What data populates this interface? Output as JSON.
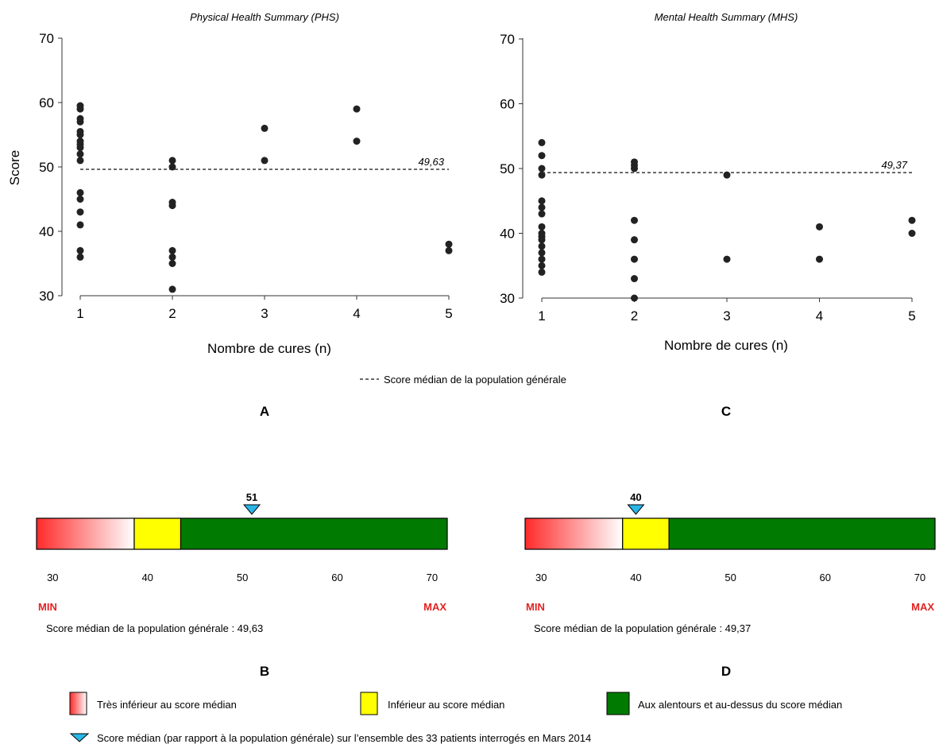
{
  "chart_data": [
    {
      "type": "scatter",
      "panel": "A",
      "title": "Physical Health Summary (PHS)",
      "xlabel": "Nombre de cures (n)",
      "ylabel": "Score",
      "xticks": [
        "1",
        "2",
        "3",
        "4",
        "5"
      ],
      "yticks": [
        "30",
        "40",
        "50",
        "60",
        "70"
      ],
      "xlim": [
        1,
        5
      ],
      "ylim": [
        30,
        70
      ],
      "grid": false,
      "reference_line": {
        "value": 49.63,
        "label": "49,63",
        "style": "dashed"
      },
      "points": [
        {
          "x": 1,
          "y": 59.5
        },
        {
          "x": 1,
          "y": 59
        },
        {
          "x": 1,
          "y": 57.5
        },
        {
          "x": 1,
          "y": 57
        },
        {
          "x": 1,
          "y": 55.5
        },
        {
          "x": 1,
          "y": 55
        },
        {
          "x": 1,
          "y": 54
        },
        {
          "x": 1,
          "y": 53.5
        },
        {
          "x": 1,
          "y": 53
        },
        {
          "x": 1,
          "y": 52
        },
        {
          "x": 1,
          "y": 51
        },
        {
          "x": 1,
          "y": 46
        },
        {
          "x": 1,
          "y": 45
        },
        {
          "x": 1,
          "y": 43
        },
        {
          "x": 1,
          "y": 41
        },
        {
          "x": 1,
          "y": 37
        },
        {
          "x": 1,
          "y": 36
        },
        {
          "x": 2,
          "y": 51
        },
        {
          "x": 2,
          "y": 50
        },
        {
          "x": 2,
          "y": 44.5
        },
        {
          "x": 2,
          "y": 44
        },
        {
          "x": 2,
          "y": 37
        },
        {
          "x": 2,
          "y": 36
        },
        {
          "x": 2,
          "y": 35
        },
        {
          "x": 2,
          "y": 31
        },
        {
          "x": 3,
          "y": 56
        },
        {
          "x": 3,
          "y": 51
        },
        {
          "x": 4,
          "y": 59
        },
        {
          "x": 4,
          "y": 54
        },
        {
          "x": 5,
          "y": 38
        },
        {
          "x": 5,
          "y": 37
        }
      ]
    },
    {
      "type": "scatter",
      "panel": "C",
      "title": "Mental Health Summary (MHS)",
      "xlabel": "Nombre de cures (n)",
      "ylabel": "",
      "xticks": [
        "1",
        "2",
        "3",
        "4",
        "5"
      ],
      "yticks": [
        "30",
        "40",
        "50",
        "60",
        "70"
      ],
      "xlim": [
        1,
        5
      ],
      "ylim": [
        30,
        70
      ],
      "grid": false,
      "reference_line": {
        "value": 49.37,
        "label": "49,37",
        "style": "dashed"
      },
      "points": [
        {
          "x": 1,
          "y": 54
        },
        {
          "x": 1,
          "y": 52
        },
        {
          "x": 1,
          "y": 50
        },
        {
          "x": 1,
          "y": 49
        },
        {
          "x": 1,
          "y": 45
        },
        {
          "x": 1,
          "y": 44
        },
        {
          "x": 1,
          "y": 43
        },
        {
          "x": 1,
          "y": 41
        },
        {
          "x": 1,
          "y": 40
        },
        {
          "x": 1,
          "y": 39.5
        },
        {
          "x": 1,
          "y": 39
        },
        {
          "x": 1,
          "y": 38
        },
        {
          "x": 1,
          "y": 37
        },
        {
          "x": 1,
          "y": 36
        },
        {
          "x": 1,
          "y": 35
        },
        {
          "x": 1,
          "y": 34
        },
        {
          "x": 2,
          "y": 51
        },
        {
          "x": 2,
          "y": 50.5
        },
        {
          "x": 2,
          "y": 50
        },
        {
          "x": 2,
          "y": 42
        },
        {
          "x": 2,
          "y": 39
        },
        {
          "x": 2,
          "y": 36
        },
        {
          "x": 2,
          "y": 33
        },
        {
          "x": 2,
          "y": 30
        },
        {
          "x": 3,
          "y": 49
        },
        {
          "x": 3,
          "y": 36
        },
        {
          "x": 4,
          "y": 41
        },
        {
          "x": 4,
          "y": 36
        },
        {
          "x": 5,
          "y": 42
        },
        {
          "x": 5,
          "y": 40
        }
      ]
    },
    {
      "type": "gauge",
      "panel": "B",
      "range": [
        28.3,
        71.6
      ],
      "ticks": [
        "30",
        "40",
        "50",
        "60",
        "70"
      ],
      "segments": [
        {
          "from": 28.3,
          "to": 38.6,
          "fill": "gradient",
          "colors": [
            "#ff2a2a",
            "#ffffff"
          ]
        },
        {
          "from": 38.6,
          "to": 43.5,
          "fill": "#ffff00"
        },
        {
          "from": 43.5,
          "to": 71.6,
          "fill": "#007a00"
        }
      ],
      "marker": {
        "value": 51,
        "label": "51"
      },
      "min_label": "MIN",
      "max_label": "MAX",
      "caption": "Score médian de la population générale : 49,63"
    },
    {
      "type": "gauge",
      "panel": "D",
      "range": [
        28.3,
        71.6
      ],
      "ticks": [
        "30",
        "40",
        "50",
        "60",
        "70"
      ],
      "segments": [
        {
          "from": 28.3,
          "to": 38.6,
          "fill": "gradient",
          "colors": [
            "#ff2a2a",
            "#ffffff"
          ]
        },
        {
          "from": 38.6,
          "to": 43.5,
          "fill": "#ffff00"
        },
        {
          "from": 43.5,
          "to": 71.6,
          "fill": "#007a00"
        }
      ],
      "marker": {
        "value": 40,
        "label": "40"
      },
      "min_label": "MIN",
      "max_label": "MAX",
      "caption": "Score médian de la population générale : 49,37"
    }
  ],
  "legend_top": {
    "text": "Score médian de la population générale"
  },
  "panel_letters": {
    "a": "A",
    "b": "B",
    "c": "C",
    "d": "D"
  },
  "legend_bottom": {
    "very_low": "Très inférieur au score médian",
    "low": "Inférieur au score médian",
    "around_above": "Aux alentours et au-dessus du score médian",
    "triangle": "Score médian (par rapport à la population générale) sur l’ensemble des 33 patients interrogés en Mars 2014"
  },
  "colors": {
    "red": "#ff2a2a",
    "yellow": "#ffff00",
    "green": "#007a00",
    "marker": "#29b6e8",
    "minmax": "#e32222",
    "point": "#222222"
  }
}
